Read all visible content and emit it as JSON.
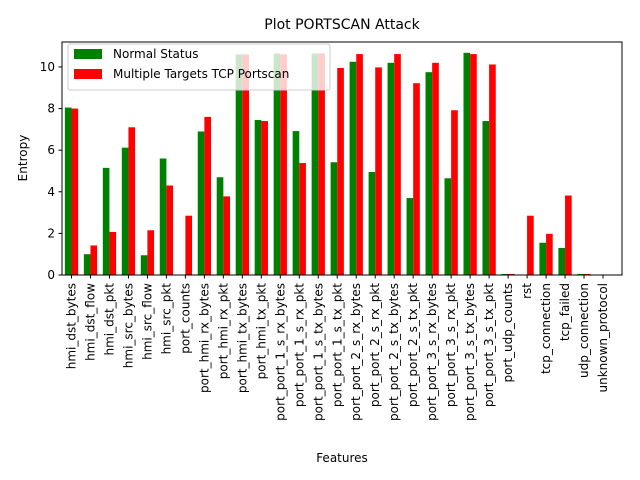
{
  "chart_data": {
    "type": "bar",
    "title": "Plot PORTSCAN Attack",
    "xlabel": "Features",
    "ylabel": "Entropy",
    "ylim": [
      0,
      11.2
    ],
    "yticks": [
      0,
      2,
      4,
      6,
      8,
      10
    ],
    "legend_position": "top-left",
    "grid": false,
    "categories": [
      "hmi_dst_bytes",
      "hmi_dst_flow",
      "hmi_dst_pkt",
      "hmi_src_bytes",
      "hmi_src_flow",
      "hmi_src_pkt",
      "port_counts",
      "port_hmi_rx_bytes",
      "port_hmi_rx_pkt",
      "port_hmi_tx_bytes",
      "port_hmi_tx_pkt",
      "port_port_1_s_rx_bytes",
      "port_port_1_s_rx_pkt",
      "port_port_1_s_tx_bytes",
      "port_port_1_s_tx_pkt",
      "port_port_2_s_rx_bytes",
      "port_port_2_s_rx_pkt",
      "port_port_2_s_tx_bytes",
      "port_port_2_s_tx_pkt",
      "port_port_3_s_rx_bytes",
      "port_port_3_s_rx_pkt",
      "port_port_3_s_tx_bytes",
      "port_port_3_s_tx_pkt",
      "port_udp_counts",
      "rst",
      "tcp_connection",
      "tcp_failed",
      "udp_connection",
      "unknown_protocol"
    ],
    "series": [
      {
        "name": "Normal Status",
        "color": "#008000",
        "values": [
          8.05,
          1.0,
          5.15,
          6.12,
          0.95,
          5.6,
          0.0,
          6.9,
          4.7,
          10.6,
          7.45,
          10.65,
          6.92,
          10.65,
          5.42,
          10.25,
          4.95,
          10.2,
          3.7,
          9.75,
          4.65,
          10.68,
          7.4,
          0.05,
          0.0,
          1.55,
          1.3,
          0.05,
          0.0
        ]
      },
      {
        "name": "Multiple Targets TCP Portscan",
        "color": "#ff0000",
        "values": [
          8.0,
          1.42,
          2.07,
          7.1,
          2.15,
          4.3,
          2.85,
          7.6,
          3.78,
          10.6,
          7.4,
          10.6,
          5.38,
          10.65,
          9.95,
          10.62,
          9.98,
          10.62,
          9.22,
          10.2,
          7.92,
          10.62,
          10.12,
          0.05,
          2.85,
          1.98,
          3.82,
          0.05,
          0.0
        ]
      }
    ]
  }
}
